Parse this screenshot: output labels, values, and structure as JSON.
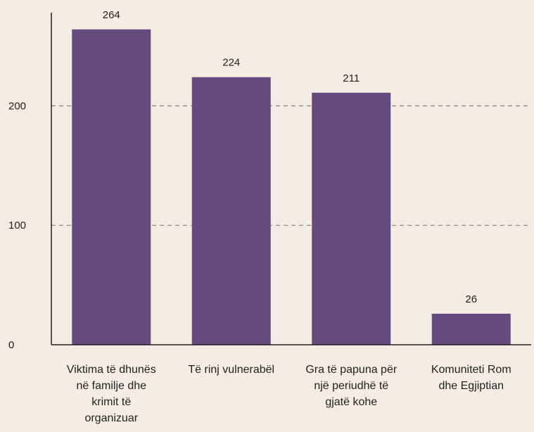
{
  "chart_data": {
    "type": "bar",
    "categories": [
      [
        "Viktima të dhunës",
        "në familje dhe",
        "krimit të",
        "organizuar"
      ],
      [
        "Të rinj vulnerabël"
      ],
      [
        "Gra të papuna për",
        "një periudhë të",
        "gjatë kohe"
      ],
      [
        "Komuniteti Rom",
        "dhe Egjiptian"
      ]
    ],
    "values": [
      264,
      224,
      211,
      26
    ],
    "value_labels": [
      "264",
      "224",
      "211",
      "26"
    ],
    "yticks": [
      0,
      100,
      200
    ],
    "ytick_labels": [
      "0",
      "100",
      "200"
    ],
    "ylim": [
      0,
      278
    ],
    "grid": "horizontal dashed at 100 and 200",
    "bar_color": "#644a7d",
    "title": "",
    "xlabel": "",
    "ylabel": ""
  }
}
